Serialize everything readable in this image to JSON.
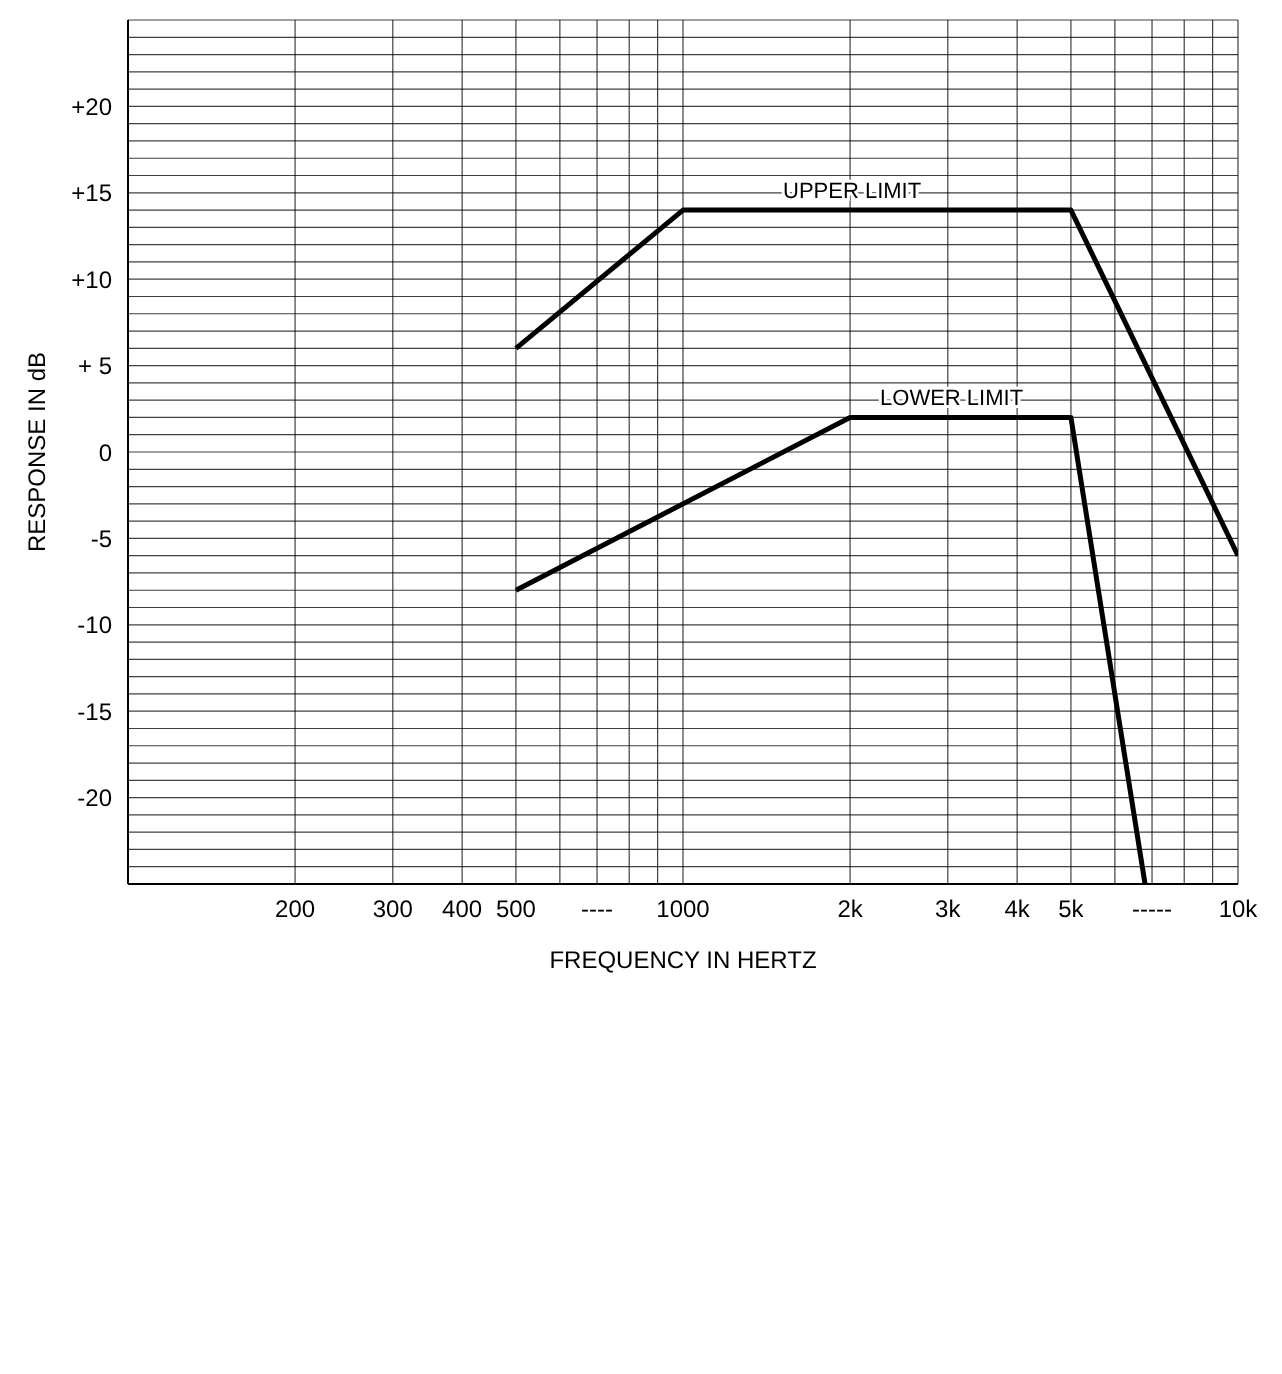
{
  "chart_data": {
    "type": "line",
    "xlabel": "FREQUENCY IN HERTZ",
    "ylabel": "RESPONSE IN dB",
    "log": "x",
    "grid": true,
    "marker": "none",
    "line_style": "solid",
    "legend": false,
    "xlim": [
      100,
      10000
    ],
    "xticks": [
      {
        "value": 100,
        "label": null
      },
      {
        "value": 200,
        "label": "200"
      },
      {
        "value": 300,
        "label": "300"
      },
      {
        "value": 400,
        "label": "400"
      },
      {
        "value": 500,
        "label": "500"
      },
      {
        "value": 600,
        "label": null
      },
      {
        "value": 700,
        "label": "----"
      },
      {
        "value": 800,
        "label": null
      },
      {
        "value": 900,
        "label": null
      },
      {
        "value": 1000,
        "label": "1000"
      },
      {
        "value": 2000,
        "label": "2k"
      },
      {
        "value": 3000,
        "label": "3k"
      },
      {
        "value": 4000,
        "label": "4k"
      },
      {
        "value": 5000,
        "label": "5k"
      },
      {
        "value": 6000,
        "label": null
      },
      {
        "value": 7000,
        "label": "-----"
      },
      {
        "value": 8000,
        "label": null
      },
      {
        "value": 9000,
        "label": null
      },
      {
        "value": 10000,
        "label": "10k"
      }
    ],
    "ylim": [
      -25,
      25
    ],
    "yticks": [
      {
        "value": -25,
        "label": null
      },
      {
        "value": -24,
        "label": null
      },
      {
        "value": -23,
        "label": null
      },
      {
        "value": -22,
        "label": null
      },
      {
        "value": -21,
        "label": null
      },
      {
        "value": -20,
        "label": "-20"
      },
      {
        "value": -19,
        "label": null
      },
      {
        "value": -18,
        "label": null
      },
      {
        "value": -17,
        "label": null
      },
      {
        "value": -16,
        "label": null
      },
      {
        "value": -15,
        "label": "-15"
      },
      {
        "value": -14,
        "label": null
      },
      {
        "value": -13,
        "label": null
      },
      {
        "value": -12,
        "label": null
      },
      {
        "value": -11,
        "label": null
      },
      {
        "value": -10,
        "label": "-10"
      },
      {
        "value": -9,
        "label": null
      },
      {
        "value": -8,
        "label": null
      },
      {
        "value": -7,
        "label": null
      },
      {
        "value": -6,
        "label": null
      },
      {
        "value": -5,
        "label": "-5"
      },
      {
        "value": -4,
        "label": null
      },
      {
        "value": -3,
        "label": null
      },
      {
        "value": -2,
        "label": null
      },
      {
        "value": -1,
        "label": null
      },
      {
        "value": 0,
        "label": "0"
      },
      {
        "value": 1,
        "label": null
      },
      {
        "value": 2,
        "label": null
      },
      {
        "value": 3,
        "label": null
      },
      {
        "value": 4,
        "label": null
      },
      {
        "value": 5,
        "label": "+ 5"
      },
      {
        "value": 6,
        "label": null
      },
      {
        "value": 7,
        "label": null
      },
      {
        "value": 8,
        "label": null
      },
      {
        "value": 9,
        "label": null
      },
      {
        "value": 10,
        "label": "+10"
      },
      {
        "value": 11,
        "label": null
      },
      {
        "value": 12,
        "label": null
      },
      {
        "value": 13,
        "label": null
      },
      {
        "value": 14,
        "label": null
      },
      {
        "value": 15,
        "label": "+15"
      },
      {
        "value": 16,
        "label": null
      },
      {
        "value": 17,
        "label": null
      },
      {
        "value": 18,
        "label": null
      },
      {
        "value": 19,
        "label": null
      },
      {
        "value": 20,
        "label": "+20"
      },
      {
        "value": 21,
        "label": null
      },
      {
        "value": 22,
        "label": null
      },
      {
        "value": 23,
        "label": null
      },
      {
        "value": 24,
        "label": null
      },
      {
        "value": 25,
        "label": null
      }
    ],
    "series": [
      {
        "name": "UPPER LIMIT",
        "color": "#000000",
        "x": [
          500,
          1000,
          5000,
          10000
        ],
        "values": [
          6,
          14,
          14,
          -6
        ]
      },
      {
        "name": "LOWER LIMIT",
        "color": "#000000",
        "x": [
          500,
          2000,
          5000,
          6800
        ],
        "values": [
          -8,
          2,
          2,
          -25
        ]
      }
    ]
  }
}
